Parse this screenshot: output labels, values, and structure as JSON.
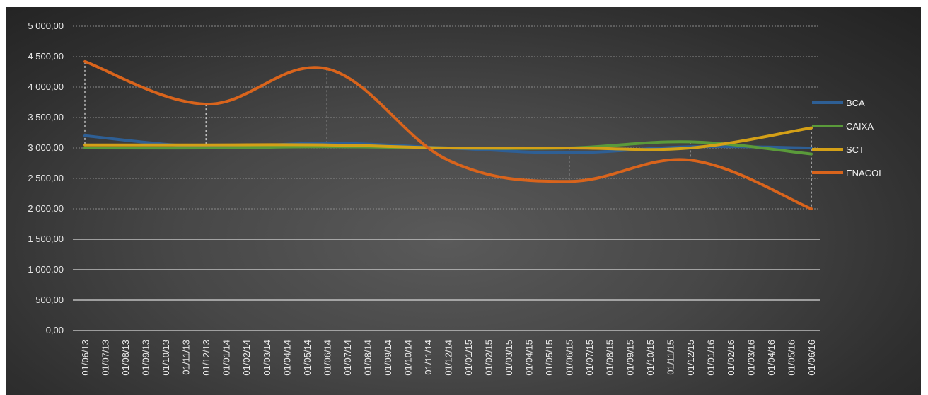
{
  "chart_data": {
    "type": "line",
    "title": "",
    "xlabel": "",
    "ylabel": "",
    "ylim": [
      0,
      5000
    ],
    "y_ticks": [
      "0,00",
      "500,00",
      "1 000,00",
      "1 500,00",
      "2 000,00",
      "2 500,00",
      "3 000,00",
      "3 500,00",
      "4 000,00",
      "4 500,00",
      "5 000,00"
    ],
    "categories": [
      "01/06/13",
      "01/07/13",
      "01/08/13",
      "01/09/13",
      "01/10/13",
      "01/11/13",
      "01/12/13",
      "01/01/14",
      "01/02/14",
      "01/03/14",
      "01/04/14",
      "01/05/14",
      "01/06/14",
      "01/07/14",
      "01/08/14",
      "01/09/14",
      "01/10/14",
      "01/11/14",
      "01/12/14",
      "01/01/15",
      "01/02/15",
      "01/03/15",
      "01/04/15",
      "01/05/15",
      "01/06/15",
      "01/07/15",
      "01/08/15",
      "01/09/15",
      "01/10/15",
      "01/11/15",
      "01/12/15",
      "01/01/16",
      "01/02/16",
      "01/03/16",
      "01/04/16",
      "01/05/16",
      "01/06/16"
    ],
    "grid": true,
    "legend_position": "right",
    "series": [
      {
        "name": "BCA",
        "color": "#2e5f95",
        "points": [
          [
            0,
            3200
          ],
          [
            6,
            3020
          ],
          [
            12,
            3080
          ],
          [
            18,
            3000
          ],
          [
            24,
            2920
          ],
          [
            30,
            3020
          ],
          [
            36,
            3000
          ]
        ]
      },
      {
        "name": "CAIXA",
        "color": "#5a9a3a",
        "points": [
          [
            0,
            3000
          ],
          [
            6,
            3000
          ],
          [
            12,
            3020
          ],
          [
            18,
            3000
          ],
          [
            24,
            3000
          ],
          [
            30,
            3100
          ],
          [
            36,
            2900
          ]
        ]
      },
      {
        "name": "SCT",
        "color": "#d4a017",
        "points": [
          [
            0,
            3050
          ],
          [
            6,
            3050
          ],
          [
            12,
            3050
          ],
          [
            18,
            3000
          ],
          [
            24,
            3000
          ],
          [
            30,
            3000
          ],
          [
            36,
            3330
          ]
        ]
      },
      {
        "name": "ENACOL",
        "color": "#d9641c",
        "points": [
          [
            0,
            4420
          ],
          [
            6,
            3720
          ],
          [
            12,
            4300
          ],
          [
            18,
            2800
          ],
          [
            24,
            2450
          ],
          [
            30,
            2800
          ],
          [
            36,
            2000
          ]
        ]
      }
    ],
    "drop_line_indices": [
      0,
      6,
      12,
      18,
      24,
      30,
      36
    ]
  }
}
